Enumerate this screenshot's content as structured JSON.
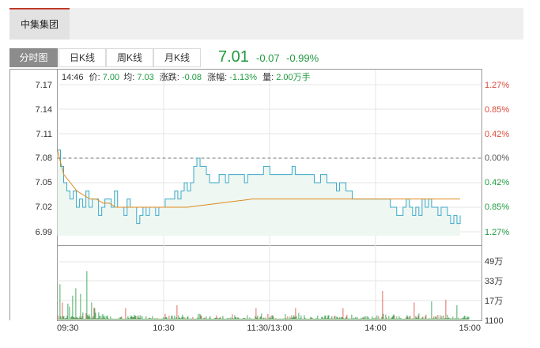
{
  "stock_name": "中集集团",
  "tabs": [
    "分时图",
    "日K线",
    "周K线",
    "月K线"
  ],
  "quote": {
    "price": "7.01",
    "change": "-0.07",
    "change_pct": "-0.99%"
  },
  "info_bar": {
    "time": "14:46",
    "price_label": "价:",
    "price_value": "7.00",
    "avg_label": "均:",
    "avg_value": "7.03",
    "chg_label": "涨跌:",
    "chg_value": "-0.08",
    "pct_label": "涨幅:",
    "pct_value": "-1.13%",
    "vol_label": "量:",
    "vol_value": "2.00万手"
  },
  "colors": {
    "up": "#d94a3a",
    "down": "#1e9a3e",
    "price_line": "#3aa8c9",
    "avg_line": "#e08a1e",
    "fill": "#eef7f1",
    "volume_bar": "#1e9a3e"
  },
  "chart_data": {
    "type": "line",
    "price_axis": {
      "labels": [
        "7.17",
        "7.14",
        "7.11",
        "7.08",
        "7.05",
        "7.02",
        "6.99"
      ],
      "values": [
        7.17,
        7.14,
        7.11,
        7.08,
        7.05,
        7.02,
        6.99
      ],
      "ylim": [
        6.98,
        7.18
      ],
      "prev_close": 7.08
    },
    "pct_axis": {
      "labels": [
        "1.27%",
        "0.85%",
        "0.42%",
        "0.00%",
        "0.42%",
        "0.85%",
        "1.27%"
      ]
    },
    "time_labels": [
      "09:30",
      "10:30",
      "11:30/13:00",
      "14:00",
      "15:00"
    ],
    "series": [
      {
        "kind": "price",
        "values": [
          7.09,
          7.07,
          7.05,
          7.04,
          7.03,
          7.04,
          7.02,
          7.03,
          7.02,
          7.04,
          7.02,
          7.03,
          7.03,
          7.01,
          7.02,
          7.03,
          7.03,
          7.02,
          7.04,
          7.02,
          7.02,
          7.01,
          7.03,
          7.02,
          7.02,
          7.0,
          7.01,
          7.02,
          7.01,
          7.02,
          7.02,
          7.01,
          7.02,
          7.02,
          7.03,
          7.03,
          7.03,
          7.04,
          7.03,
          7.04,
          7.05,
          7.04,
          7.05,
          7.07,
          7.08,
          7.07,
          7.07,
          7.06,
          7.05,
          7.05,
          7.05,
          7.06,
          7.06,
          7.05,
          7.06,
          7.06,
          7.06,
          7.06,
          7.06,
          7.05,
          7.06,
          7.06,
          7.06,
          7.06,
          7.06,
          7.07,
          7.07,
          7.06,
          7.06,
          7.06,
          7.06,
          7.06,
          7.06,
          7.06,
          7.07,
          7.06,
          7.06,
          7.06,
          7.06,
          7.06,
          7.06,
          7.05,
          7.05,
          7.06,
          7.06,
          7.05,
          7.05,
          7.05,
          7.04,
          7.05,
          7.05,
          7.04,
          7.04,
          7.03,
          7.03,
          7.03,
          7.03,
          7.03,
          7.03,
          7.03,
          7.03,
          7.03,
          7.03,
          7.03,
          7.03,
          7.02,
          7.02,
          7.01,
          7.01,
          7.02,
          7.03,
          7.02,
          7.01,
          7.02,
          7.01,
          7.03,
          7.02,
          7.03,
          7.02,
          7.02,
          7.01,
          7.02,
          7.02,
          7.01,
          7.0,
          7.01,
          7.0,
          7.01
        ]
      },
      {
        "kind": "average",
        "values": [
          7.09,
          7.06,
          7.05,
          7.04,
          7.035,
          7.03,
          7.03,
          7.025,
          7.025,
          7.02,
          7.02,
          7.02,
          7.02,
          7.02,
          7.02,
          7.02,
          7.02,
          7.02,
          7.02,
          7.02,
          7.02,
          7.021,
          7.022,
          7.023,
          7.024,
          7.025,
          7.026,
          7.027,
          7.028,
          7.029,
          7.03,
          7.03,
          7.03,
          7.03,
          7.03,
          7.03,
          7.03,
          7.03,
          7.03,
          7.03,
          7.03,
          7.03,
          7.03,
          7.03,
          7.03,
          7.03,
          7.03,
          7.03,
          7.03,
          7.03,
          7.03,
          7.03,
          7.03,
          7.03,
          7.03,
          7.03,
          7.03,
          7.03,
          7.03,
          7.03,
          7.03,
          7.03,
          7.03
        ]
      }
    ],
    "volume_axis": {
      "labels": [
        "49万",
        "33万",
        "17万",
        "1100"
      ]
    }
  }
}
